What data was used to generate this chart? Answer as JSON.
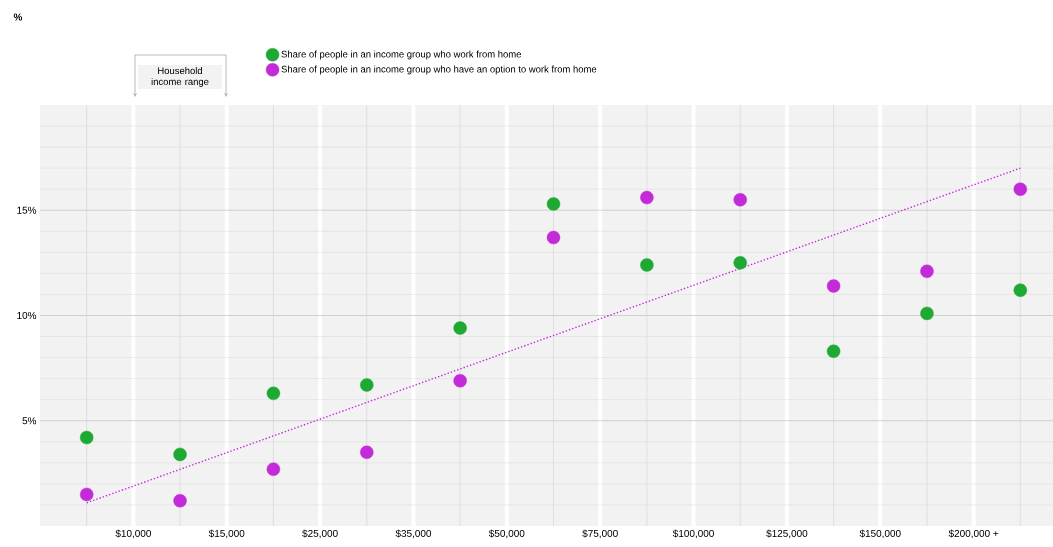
{
  "chart_data": {
    "type": "scatter",
    "annotations": [
      "%",
      "Household income range"
    ],
    "categories": [
      null,
      "$10,000",
      null,
      "$15,000",
      null,
      "$25,000",
      null,
      "$35,000",
      null,
      "$50,000",
      null,
      "$75,000",
      null,
      "$100,000",
      null,
      "$125,000",
      null,
      "$150,000",
      null,
      "$200,000 +",
      null
    ],
    "series": [
      {
        "name": "Share of people in an income group who work from home",
        "color": "#1eaa32",
        "values": [
          4.2,
          null,
          3.4,
          null,
          6.3,
          null,
          6.7,
          null,
          9.4,
          null,
          15.3,
          null,
          12.4,
          null,
          12.5,
          null,
          8.3,
          null,
          10.1,
          null,
          11.2
        ]
      },
      {
        "name": "Share of people in an income group who have an option to work from home",
        "color": "#c42bd8",
        "values": [
          1.5,
          null,
          1.2,
          null,
          2.7,
          null,
          3.5,
          null,
          6.9,
          null,
          13.7,
          null,
          15.6,
          null,
          15.5,
          null,
          11.4,
          null,
          12.1,
          null,
          16.0
        ]
      },
      {
        "type": "line",
        "color": "#c42bd8",
        "line_style": "dotted",
        "marker": "none",
        "values": [
          1.1,
          null,
          null,
          null,
          null,
          null,
          null,
          null,
          null,
          null,
          null,
          null,
          null,
          null,
          null,
          null,
          null,
          null,
          null,
          null,
          17.0
        ]
      }
    ],
    "marker": "circle",
    "ylim": [
      0,
      20
    ],
    "yticks": [
      {
        "value": 1,
        "label": null
      },
      {
        "value": 2,
        "label": null
      },
      {
        "value": 3,
        "label": null
      },
      {
        "value": 4,
        "label": null
      },
      {
        "value": 5,
        "label": "5%"
      },
      {
        "value": 6,
        "label": null
      },
      {
        "value": 7,
        "label": null
      },
      {
        "value": 8,
        "label": null
      },
      {
        "value": 9,
        "label": null
      },
      {
        "value": 10,
        "label": "10%"
      },
      {
        "value": 11,
        "label": null
      },
      {
        "value": 12,
        "label": null
      },
      {
        "value": 13,
        "label": null
      },
      {
        "value": 14,
        "label": null
      },
      {
        "value": 15,
        "label": "15%"
      },
      {
        "value": 16,
        "label": null
      },
      {
        "value": 17,
        "label": null
      },
      {
        "value": 18,
        "label": null
      },
      {
        "value": 19,
        "label": null
      }
    ],
    "grid": true,
    "legend": "top left"
  }
}
